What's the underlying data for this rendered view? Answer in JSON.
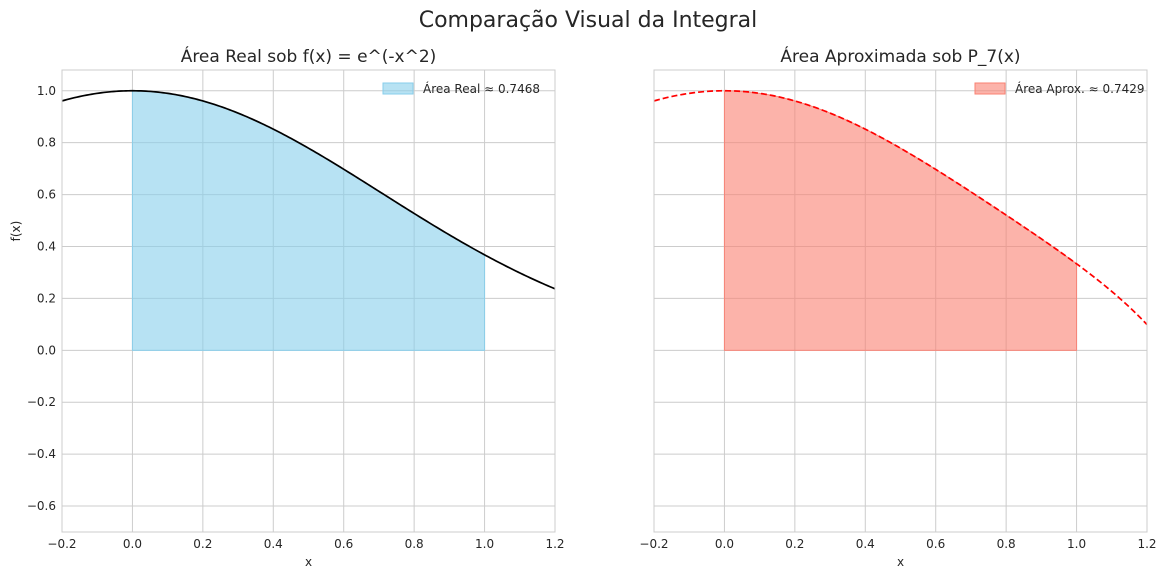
{
  "figure": {
    "suptitle": "Comparação Visual da Integral"
  },
  "chart_data": [
    {
      "type": "area",
      "title": "Área Real sob f(x) = e^(-x^2)",
      "xlabel": "x",
      "ylabel": "f(x)",
      "xlim": [
        -0.2,
        1.2
      ],
      "ylim": [
        -0.7,
        1.08
      ],
      "xticks": [
        -0.2,
        0.0,
        0.2,
        0.4,
        0.6,
        0.8,
        1.0,
        1.2
      ],
      "xtick_labels": [
        "−0.2",
        "0.0",
        "0.2",
        "0.4",
        "0.6",
        "0.8",
        "1.0",
        "1.2"
      ],
      "yticks": [
        -0.6,
        -0.4,
        -0.2,
        0.0,
        0.2,
        0.4,
        0.6,
        0.8,
        1.0
      ],
      "ytick_labels": [
        "−0.6",
        "−0.4",
        "−0.2",
        "0.0",
        "0.2",
        "0.4",
        "0.6",
        "0.8",
        "1.0"
      ],
      "grid": true,
      "legend_position": "top-right",
      "curve": {
        "function": "exp(-x^2)",
        "color": "#000000",
        "style": "solid",
        "x_range": [
          -0.2,
          1.2
        ],
        "points": [
          [
            -0.2,
            0.961
          ],
          [
            -0.1,
            0.99
          ],
          [
            0.0,
            1.0
          ],
          [
            0.1,
            0.99
          ],
          [
            0.2,
            0.961
          ],
          [
            0.3,
            0.914
          ],
          [
            0.4,
            0.852
          ],
          [
            0.5,
            0.779
          ],
          [
            0.6,
            0.698
          ],
          [
            0.7,
            0.613
          ],
          [
            0.8,
            0.527
          ],
          [
            0.9,
            0.445
          ],
          [
            1.0,
            0.368
          ],
          [
            1.1,
            0.298
          ],
          [
            1.2,
            0.237
          ]
        ]
      },
      "fill": {
        "x_range": [
          0.0,
          1.0
        ],
        "color": "#87ceeb",
        "opacity": 0.6,
        "legend_label": "Área Real ≈ 0.7468"
      }
    },
    {
      "type": "area",
      "title": "Área Aproximada sob P_7(x)",
      "xlabel": "x",
      "ylabel": "",
      "xlim": [
        -0.2,
        1.2
      ],
      "ylim": [
        -0.7,
        1.08
      ],
      "xticks": [
        -0.2,
        0.0,
        0.2,
        0.4,
        0.6,
        0.8,
        1.0,
        1.2
      ],
      "xtick_labels": [
        "−0.2",
        "0.0",
        "0.2",
        "0.4",
        "0.6",
        "0.8",
        "1.0",
        "1.2"
      ],
      "yticks": [
        -0.6,
        -0.4,
        -0.2,
        0.0,
        0.2,
        0.4,
        0.6,
        0.8,
        1.0
      ],
      "ytick_labels": [],
      "grid": true,
      "legend_position": "top-right",
      "curve": {
        "function": "1 - x^2 + x^4/2 - x^6/6",
        "color": "#ff0000",
        "style": "dashed",
        "x_range": [
          -0.2,
          1.2
        ],
        "points": [
          [
            -0.2,
            0.961
          ],
          [
            -0.1,
            0.99
          ],
          [
            0.0,
            1.0
          ],
          [
            0.1,
            0.99
          ],
          [
            0.2,
            0.961
          ],
          [
            0.3,
            0.914
          ],
          [
            0.4,
            0.852
          ],
          [
            0.5,
            0.779
          ],
          [
            0.6,
            0.697
          ],
          [
            0.7,
            0.611
          ],
          [
            0.8,
            0.521
          ],
          [
            0.9,
            0.431
          ],
          [
            1.0,
            0.333
          ],
          [
            1.1,
            0.22
          ],
          [
            1.2,
            0.096
          ]
        ]
      },
      "fill": {
        "x_range": [
          0.0,
          1.0
        ],
        "color": "#fa8072",
        "opacity": 0.6,
        "legend_label": "Área Aprox. ≈ 0.7429"
      }
    }
  ]
}
